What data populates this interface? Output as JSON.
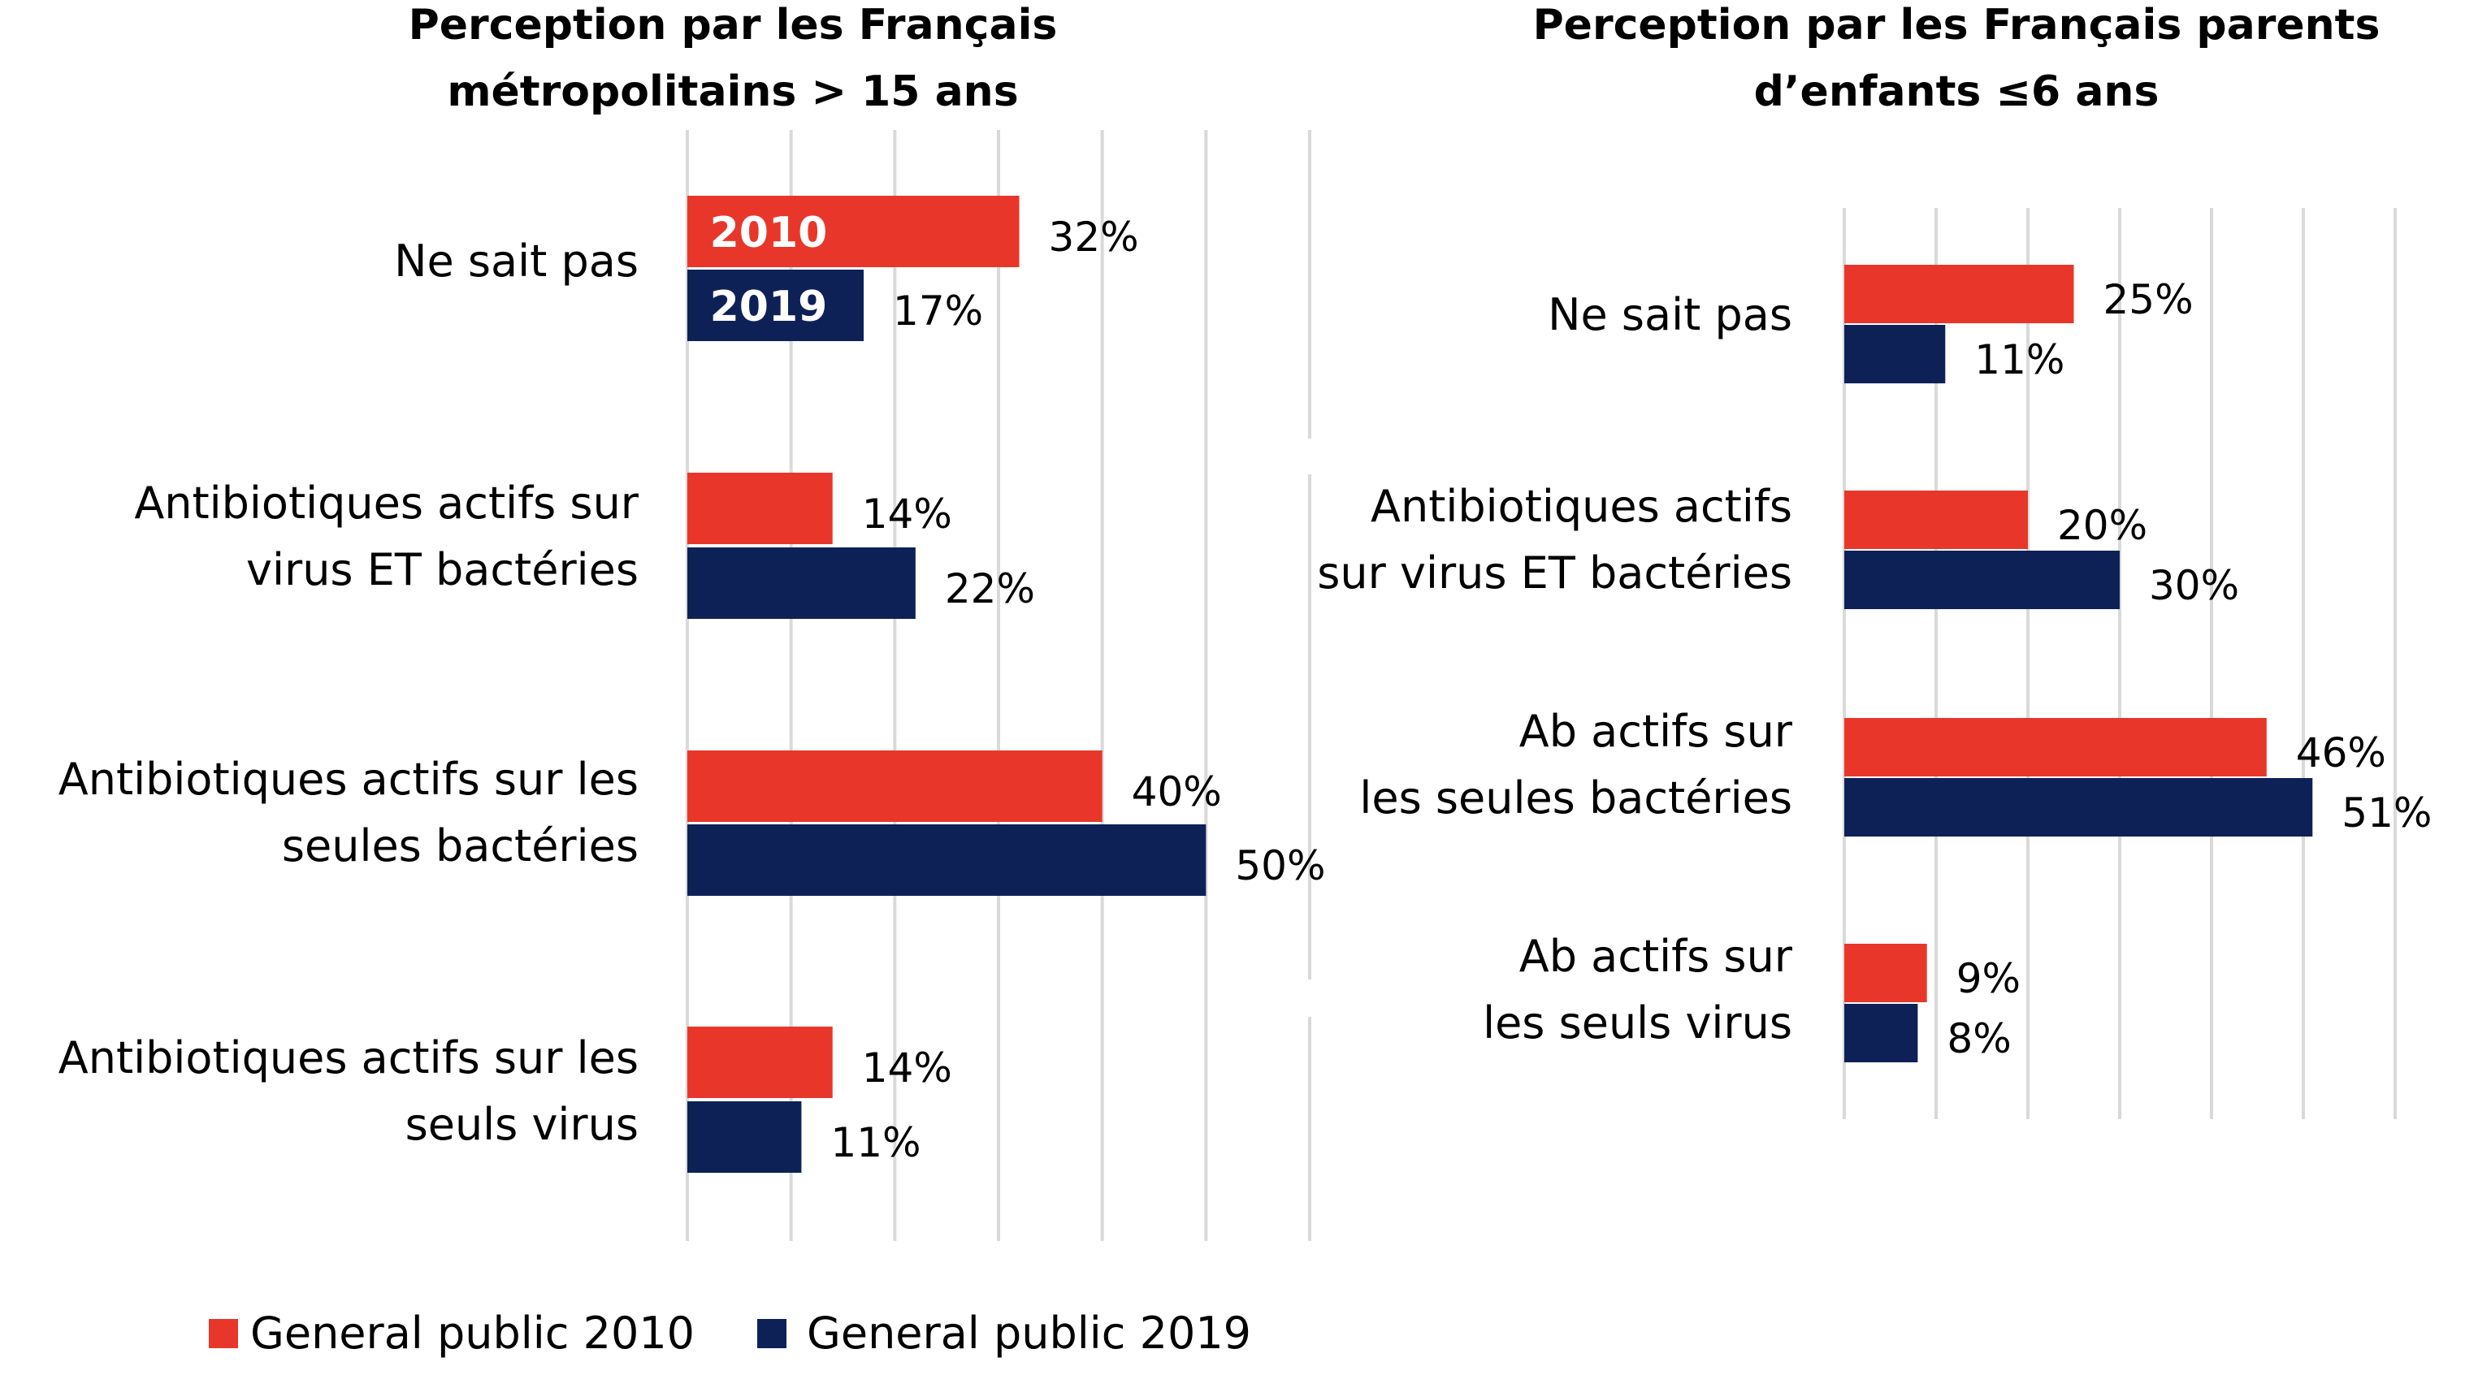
{
  "chart_data": [
    {
      "type": "bar",
      "orientation": "horizontal",
      "title_lines": [
        "Perception par les Français",
        "métropolitains > 15 ans"
      ],
      "categories": [
        [
          "Ne sait pas"
        ],
        [
          "Antibiotiques actifs sur",
          "virus ET bactéries"
        ],
        [
          "Antibiotiques actifs sur les",
          "seules bactéries"
        ],
        [
          "Antibiotiques actifs sur les",
          "seuls virus"
        ]
      ],
      "series": [
        {
          "name": "General public 2010",
          "color": "#e8372a",
          "values": [
            32,
            14,
            40,
            14
          ],
          "labels": [
            "32%",
            "14%",
            "40%",
            "14%"
          ],
          "inbar_label": "2010"
        },
        {
          "name": "General public 2019",
          "color": "#0e2157",
          "values": [
            17,
            22,
            50,
            11
          ],
          "labels": [
            "17%",
            "22%",
            "50%",
            "11%"
          ],
          "inbar_label": "2019"
        }
      ],
      "xlim": [
        0,
        60
      ],
      "grid": true,
      "unit": "%"
    },
    {
      "type": "bar",
      "orientation": "horizontal",
      "title_lines": [
        "Perception par les Français parents",
        "d’enfants ≤6 ans"
      ],
      "categories": [
        [
          "Ne sait pas"
        ],
        [
          "Antibiotiques actifs",
          "sur virus ET bactéries"
        ],
        [
          "Ab actifs sur",
          "les seules bactéries"
        ],
        [
          "Ab actifs sur",
          "les seuls virus"
        ]
      ],
      "series": [
        {
          "name": "General public 2010",
          "color": "#e8372a",
          "values": [
            25,
            20,
            46,
            9
          ],
          "labels": [
            "25%",
            "20%",
            "46%",
            "9%"
          ]
        },
        {
          "name": "General public 2019",
          "color": "#0e2157",
          "values": [
            11,
            30,
            51,
            8
          ],
          "labels": [
            "11%",
            "30%",
            "51%",
            "8%"
          ]
        }
      ],
      "xlim": [
        0,
        60
      ],
      "grid": true,
      "unit": "%"
    }
  ],
  "legend": {
    "placement": "bottom-left",
    "items": [
      {
        "label": "General public 2010",
        "color": "#e8372a"
      },
      {
        "label": "General public 2019",
        "color": "#0e2157"
      }
    ]
  }
}
